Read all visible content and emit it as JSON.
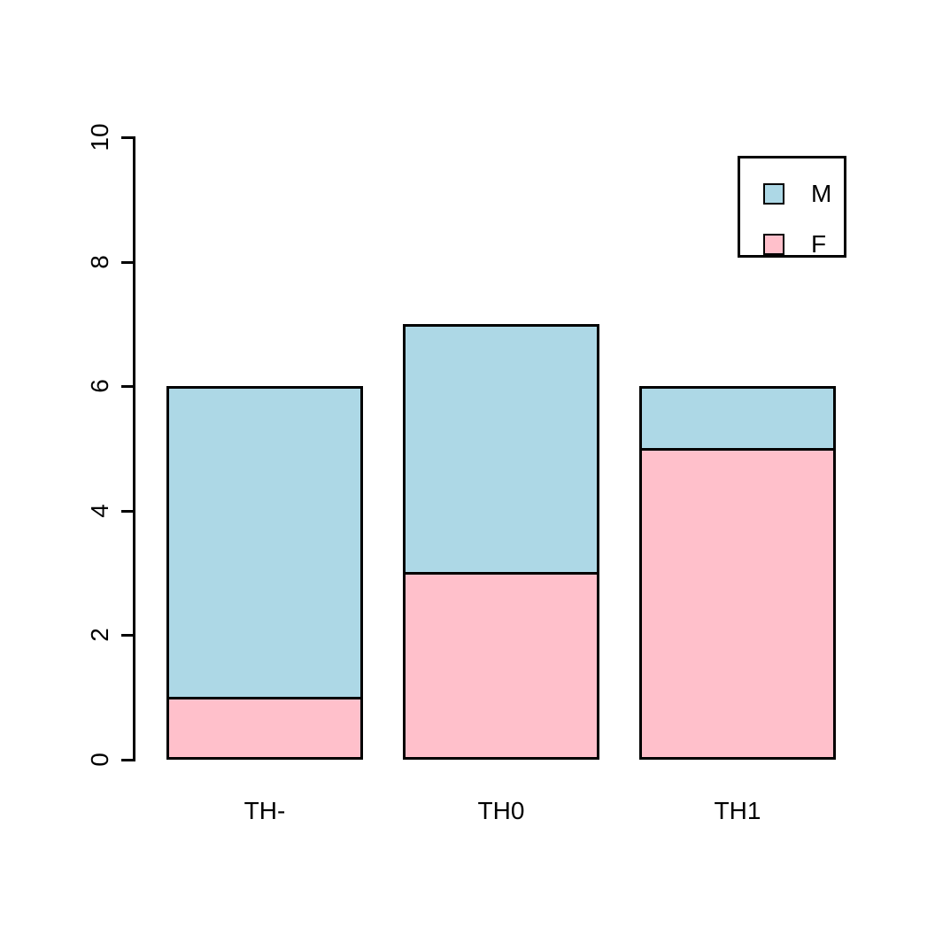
{
  "chart_data": {
    "type": "bar",
    "stacked": true,
    "title": "",
    "xlabel": "",
    "ylabel": "",
    "categories": [
      "TH-",
      "TH0",
      "TH1"
    ],
    "series": [
      {
        "name": "M",
        "color": "#ADD8E6",
        "values": [
          5,
          4,
          1
        ]
      },
      {
        "name": "F",
        "color": "#FFC0CB",
        "values": [
          1,
          3,
          5
        ]
      }
    ],
    "stack_bottom_to_top": [
      "F",
      "M"
    ],
    "totals": [
      6,
      7,
      6
    ],
    "ylim": [
      0,
      10
    ],
    "yticks": [
      0,
      2,
      4,
      6,
      8,
      10
    ],
    "grid": false,
    "legend": {
      "entries": [
        "M",
        "F"
      ],
      "position": "top-right"
    },
    "colors": {
      "axis": "#000000",
      "bar_border": "#000000",
      "background": "#FFFFFF"
    }
  }
}
